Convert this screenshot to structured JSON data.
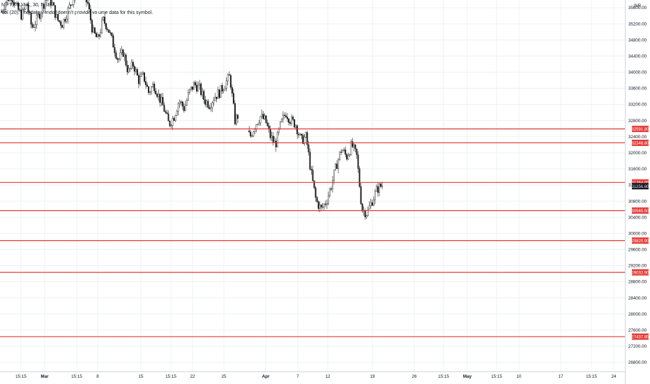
{
  "header": {
    "symbol": "NIFTY BANK, 30, NSE",
    "volume_notice": "Vol (20): The data vendor doesn't provide volume data for this symbol."
  },
  "chart_data": {
    "type": "candlestick",
    "currency": "INR",
    "ylim": [
      26600,
      36100
    ],
    "y_ticks": [
      "35600.00",
      "35200.00",
      "34800.00",
      "34400.00",
      "34000.00",
      "33600.00",
      "33200.00",
      "32800.00",
      "32400.00",
      "32000.00",
      "31600.00",
      "31200.00",
      "30800.00",
      "30400.00",
      "30000.00",
      "29600.00",
      "29200.00",
      "28800.00",
      "28400.00",
      "28000.00",
      "27600.00",
      "27200.00",
      "26800.00"
    ],
    "x_ticks": [
      {
        "label": "15:15",
        "bold": false
      },
      {
        "label": "Mar",
        "bold": true
      },
      {
        "label": "15:15",
        "bold": false
      },
      {
        "label": "8",
        "bold": false
      },
      {
        "label": "15",
        "bold": false
      },
      {
        "label": "15:15",
        "bold": false
      },
      {
        "label": "22",
        "bold": false
      },
      {
        "label": "25",
        "bold": false
      },
      {
        "label": "Apr",
        "bold": true
      },
      {
        "label": "7",
        "bold": false
      },
      {
        "label": "12",
        "bold": false
      },
      {
        "label": "19",
        "bold": false
      },
      {
        "label": "26",
        "bold": false
      },
      {
        "label": "15:15",
        "bold": false
      },
      {
        "label": "May",
        "bold": true
      },
      {
        "label": "15:15",
        "bold": false
      },
      {
        "label": "10",
        "bold": false
      },
      {
        "label": "17",
        "bold": false
      },
      {
        "label": "15:15",
        "bold": false
      },
      {
        "label": "24",
        "bold": false
      }
    ],
    "levels": [
      {
        "label": "32591.80",
        "value": 32591.8
      },
      {
        "label": "32246.80",
        "value": 32246.8
      },
      {
        "label": "31264.05",
        "value": 31264.05
      },
      {
        "label": "30565.50",
        "value": 30565.5
      },
      {
        "label": "29820.90",
        "value": 29820.9
      },
      {
        "label": "29032.90",
        "value": 29032.9
      },
      {
        "label": "27437.85",
        "value": 27437.85
      }
    ],
    "last_price": {
      "label": "31256.60",
      "value": 31256.6
    },
    "price_path": [
      35500,
      35800,
      35900,
      35600,
      35400,
      35700,
      35100,
      35300,
      35600,
      35900,
      35700,
      35300,
      35200,
      35500,
      35800,
      36000,
      35900,
      35700,
      35000,
      34800,
      35300,
      35100,
      34700,
      34300,
      34500,
      34000,
      34200,
      33800,
      33900,
      33500,
      33700,
      33400,
      33100,
      32700,
      32900,
      33300,
      33100,
      33500,
      33700,
      33600,
      33300,
      33200,
      33400,
      33500,
      33700,
      33900,
      32800,
      33000,
      32600,
      32400,
      32700,
      32900,
      32800,
      32400,
      32200,
      32700,
      33000,
      32800,
      32700,
      32300,
      32400,
      31500,
      30800,
      30600,
      30800,
      31200,
      31700,
      32100,
      31900,
      32200,
      31900,
      30600,
      30500,
      30800,
      31100,
      31200
    ],
    "candles": 270
  },
  "colors": {
    "up": "#26a69a",
    "down": "#000000",
    "level": "#e53935",
    "grid": "#eef0f3",
    "axis_text": "#131722"
  }
}
